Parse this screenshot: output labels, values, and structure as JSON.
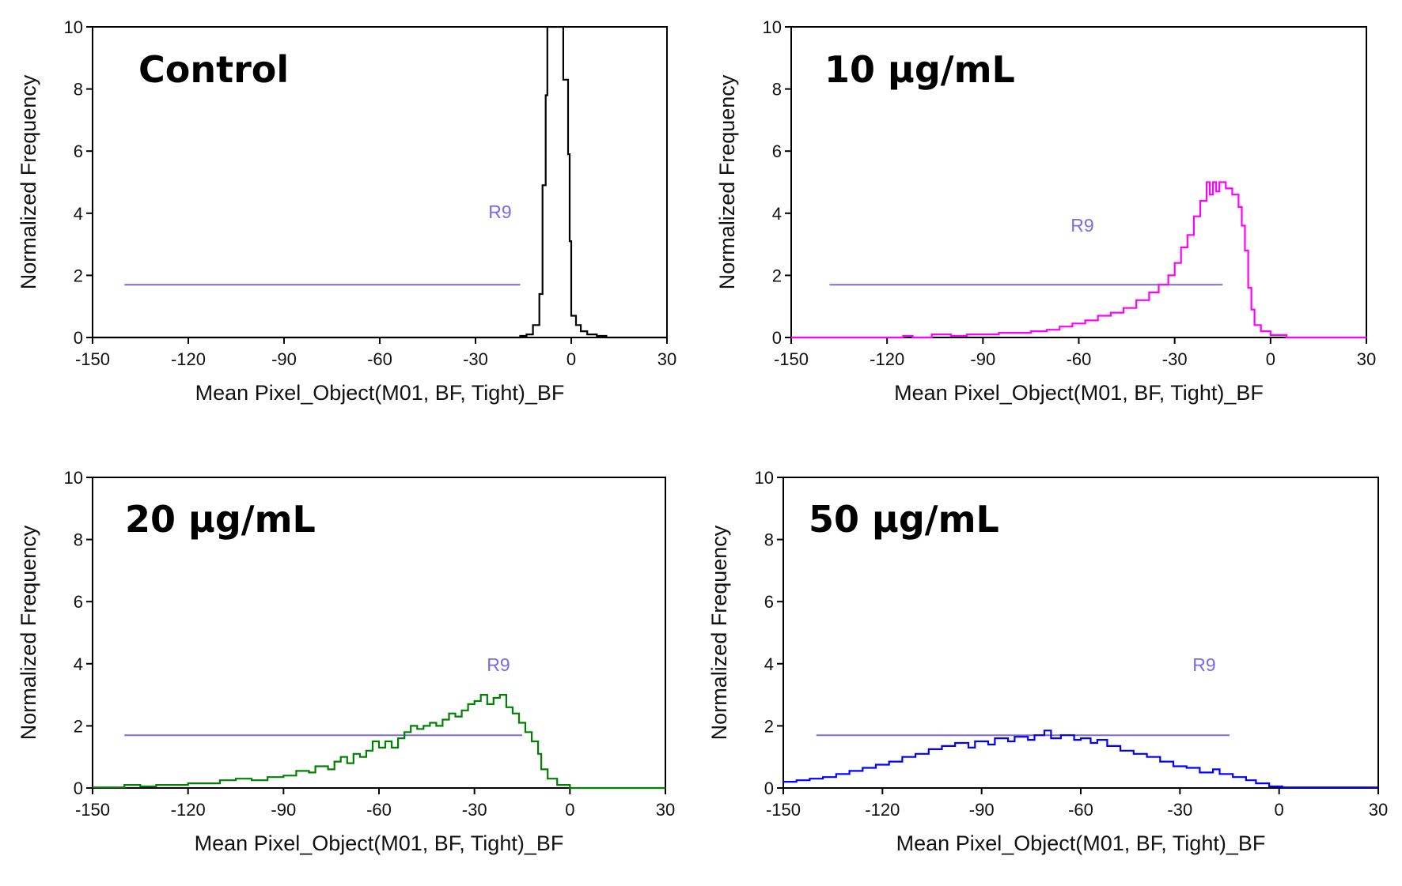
{
  "figure": {
    "region_color": "#7b68ee",
    "axis_color": "#000000"
  },
  "chart_data": [
    {
      "type": "histogram-step",
      "title": "Control",
      "xlabel": "Mean Pixel_Object(M01, BF, Tight)_BF",
      "ylabel": "Normalized Frequency",
      "xlim": [
        -150,
        30
      ],
      "ylim": [
        0,
        10
      ],
      "xticks": [
        -150,
        -120,
        -90,
        -60,
        -30,
        0,
        30
      ],
      "yticks": [
        0,
        2,
        4,
        6,
        8,
        10
      ],
      "color": "#000000",
      "region": {
        "name": "R9",
        "x_start": -140,
        "x_end": -16,
        "y": 1.7
      },
      "series": [
        [
          -150,
          0
        ],
        [
          -16,
          0
        ],
        [
          -16,
          0.05
        ],
        [
          -14,
          0.05
        ],
        [
          -14,
          0.1
        ],
        [
          -12,
          0.1
        ],
        [
          -12,
          0.4
        ],
        [
          -10,
          0.4
        ],
        [
          -10,
          1.4
        ],
        [
          -9,
          1.4
        ],
        [
          -9,
          4.9
        ],
        [
          -8,
          4.9
        ],
        [
          -8,
          7.8
        ],
        [
          -7.5,
          7.8
        ],
        [
          -7.5,
          10
        ],
        [
          -2.5,
          10
        ],
        [
          -2.5,
          8.3
        ],
        [
          -1,
          8.3
        ],
        [
          -1,
          5.9
        ],
        [
          -0.5,
          5.9
        ],
        [
          -0.5,
          3.1
        ],
        [
          0,
          3.1
        ],
        [
          0,
          0.7
        ],
        [
          1.5,
          0.7
        ],
        [
          1.5,
          0.4
        ],
        [
          3,
          0.4
        ],
        [
          3,
          0.2
        ],
        [
          5,
          0.2
        ],
        [
          5,
          0.1
        ],
        [
          8,
          0.1
        ],
        [
          8,
          0.05
        ],
        [
          11,
          0.05
        ],
        [
          11,
          0
        ],
        [
          30,
          0
        ]
      ]
    },
    {
      "type": "histogram-step",
      "title": "10 µg/mL",
      "xlabel": "Mean Pixel_Object(M01, BF, Tight)_BF",
      "ylabel": "Normalized Frequency",
      "xlim": [
        -150,
        30
      ],
      "ylim": [
        0,
        10
      ],
      "xticks": [
        -150,
        -120,
        -90,
        -60,
        -30,
        0,
        30
      ],
      "yticks": [
        0,
        2,
        4,
        6,
        8,
        10
      ],
      "color": "#ff00ff",
      "region": {
        "name": "R9",
        "x_start": -138,
        "x_end": -15,
        "y": 1.7
      },
      "series": [
        [
          -150,
          0
        ],
        [
          -115,
          0
        ],
        [
          -115,
          0.05
        ],
        [
          -112,
          0.05
        ],
        [
          -112,
          0
        ],
        [
          -106,
          0
        ],
        [
          -106,
          0.1
        ],
        [
          -100,
          0.1
        ],
        [
          -100,
          0.05
        ],
        [
          -95,
          0.05
        ],
        [
          -95,
          0.1
        ],
        [
          -85,
          0.1
        ],
        [
          -85,
          0.15
        ],
        [
          -75,
          0.15
        ],
        [
          -75,
          0.2
        ],
        [
          -70,
          0.2
        ],
        [
          -70,
          0.25
        ],
        [
          -66,
          0.25
        ],
        [
          -66,
          0.35
        ],
        [
          -62,
          0.35
        ],
        [
          -62,
          0.45
        ],
        [
          -58,
          0.45
        ],
        [
          -58,
          0.55
        ],
        [
          -54,
          0.55
        ],
        [
          -54,
          0.7
        ],
        [
          -50,
          0.7
        ],
        [
          -50,
          0.8
        ],
        [
          -46,
          0.8
        ],
        [
          -46,
          0.95
        ],
        [
          -42,
          0.95
        ],
        [
          -42,
          1.2
        ],
        [
          -38,
          1.2
        ],
        [
          -38,
          1.45
        ],
        [
          -35,
          1.45
        ],
        [
          -35,
          1.7
        ],
        [
          -32,
          1.7
        ],
        [
          -32,
          2.0
        ],
        [
          -30,
          2.0
        ],
        [
          -30,
          2.4
        ],
        [
          -28,
          2.4
        ],
        [
          -28,
          2.9
        ],
        [
          -26,
          2.9
        ],
        [
          -26,
          3.3
        ],
        [
          -24,
          3.3
        ],
        [
          -24,
          3.9
        ],
        [
          -22,
          3.9
        ],
        [
          -22,
          4.4
        ],
        [
          -20,
          4.4
        ],
        [
          -20,
          5.0
        ],
        [
          -19,
          5.0
        ],
        [
          -19,
          4.6
        ],
        [
          -18,
          4.6
        ],
        [
          -18,
          5.0
        ],
        [
          -17,
          5.0
        ],
        [
          -17,
          4.7
        ],
        [
          -16,
          4.7
        ],
        [
          -16,
          5.0
        ],
        [
          -14,
          5.0
        ],
        [
          -14,
          4.8
        ],
        [
          -12,
          4.8
        ],
        [
          -12,
          4.6
        ],
        [
          -10,
          4.6
        ],
        [
          -10,
          4.2
        ],
        [
          -9,
          4.2
        ],
        [
          -9,
          3.6
        ],
        [
          -8,
          3.6
        ],
        [
          -8,
          2.8
        ],
        [
          -7,
          2.8
        ],
        [
          -7,
          1.6
        ],
        [
          -6,
          1.6
        ],
        [
          -6,
          0.9
        ],
        [
          -5,
          0.9
        ],
        [
          -5,
          0.4
        ],
        [
          -3,
          0.4
        ],
        [
          -3,
          0.2
        ],
        [
          0,
          0.2
        ],
        [
          0,
          0.08
        ],
        [
          5,
          0.08
        ],
        [
          5,
          0
        ],
        [
          30,
          0
        ]
      ]
    },
    {
      "type": "histogram-step",
      "title": "20 µg/mL",
      "xlabel": "Mean Pixel_Object(M01, BF, Tight)_BF",
      "ylabel": "Normalized Frequency",
      "xlim": [
        -150,
        30
      ],
      "ylim": [
        0,
        10
      ],
      "xticks": [
        -150,
        -120,
        -90,
        -60,
        -30,
        0,
        30
      ],
      "yticks": [
        0,
        2,
        4,
        6,
        8,
        10
      ],
      "color": "#008000",
      "region": {
        "name": "R9",
        "x_start": -140,
        "x_end": -15,
        "y": 1.7
      },
      "series": [
        [
          -150,
          0.02
        ],
        [
          -140,
          0.02
        ],
        [
          -140,
          0.1
        ],
        [
          -135,
          0.1
        ],
        [
          -135,
          0.05
        ],
        [
          -130,
          0.05
        ],
        [
          -130,
          0.1
        ],
        [
          -120,
          0.1
        ],
        [
          -120,
          0.15
        ],
        [
          -110,
          0.15
        ],
        [
          -110,
          0.25
        ],
        [
          -105,
          0.25
        ],
        [
          -105,
          0.3
        ],
        [
          -100,
          0.3
        ],
        [
          -100,
          0.25
        ],
        [
          -95,
          0.25
        ],
        [
          -95,
          0.35
        ],
        [
          -90,
          0.35
        ],
        [
          -90,
          0.4
        ],
        [
          -86,
          0.4
        ],
        [
          -86,
          0.55
        ],
        [
          -82,
          0.55
        ],
        [
          -82,
          0.5
        ],
        [
          -80,
          0.5
        ],
        [
          -80,
          0.7
        ],
        [
          -76,
          0.7
        ],
        [
          -76,
          0.6
        ],
        [
          -74,
          0.6
        ],
        [
          -74,
          0.85
        ],
        [
          -72,
          0.85
        ],
        [
          -72,
          1.0
        ],
        [
          -70,
          1.0
        ],
        [
          -70,
          0.8
        ],
        [
          -68,
          0.8
        ],
        [
          -68,
          1.1
        ],
        [
          -66,
          1.1
        ],
        [
          -66,
          1.0
        ],
        [
          -64,
          1.0
        ],
        [
          -64,
          1.2
        ],
        [
          -62,
          1.2
        ],
        [
          -62,
          1.5
        ],
        [
          -60,
          1.5
        ],
        [
          -60,
          1.3
        ],
        [
          -58,
          1.3
        ],
        [
          -58,
          1.5
        ],
        [
          -56,
          1.5
        ],
        [
          -56,
          1.3
        ],
        [
          -54,
          1.3
        ],
        [
          -54,
          1.6
        ],
        [
          -52,
          1.6
        ],
        [
          -52,
          1.8
        ],
        [
          -50,
          1.8
        ],
        [
          -50,
          2.0
        ],
        [
          -48,
          2.0
        ],
        [
          -48,
          1.9
        ],
        [
          -46,
          1.9
        ],
        [
          -46,
          2.0
        ],
        [
          -44,
          2.0
        ],
        [
          -44,
          2.1
        ],
        [
          -42,
          2.1
        ],
        [
          -42,
          2.0
        ],
        [
          -40,
          2.0
        ],
        [
          -40,
          2.2
        ],
        [
          -38,
          2.2
        ],
        [
          -38,
          2.4
        ],
        [
          -36,
          2.4
        ],
        [
          -36,
          2.3
        ],
        [
          -34,
          2.3
        ],
        [
          -34,
          2.5
        ],
        [
          -32,
          2.5
        ],
        [
          -32,
          2.7
        ],
        [
          -30,
          2.7
        ],
        [
          -30,
          2.8
        ],
        [
          -28,
          2.8
        ],
        [
          -28,
          3.0
        ],
        [
          -26,
          3.0
        ],
        [
          -26,
          2.7
        ],
        [
          -24,
          2.7
        ],
        [
          -24,
          2.9
        ],
        [
          -22,
          2.9
        ],
        [
          -22,
          3.0
        ],
        [
          -20,
          3.0
        ],
        [
          -20,
          2.6
        ],
        [
          -18,
          2.6
        ],
        [
          -18,
          2.4
        ],
        [
          -16,
          2.4
        ],
        [
          -16,
          2.1
        ],
        [
          -14,
          2.1
        ],
        [
          -14,
          1.8
        ],
        [
          -12,
          1.8
        ],
        [
          -12,
          1.5
        ],
        [
          -10,
          1.5
        ],
        [
          -10,
          1.1
        ],
        [
          -9,
          1.1
        ],
        [
          -9,
          0.6
        ],
        [
          -7,
          0.6
        ],
        [
          -7,
          0.3
        ],
        [
          -4,
          0.3
        ],
        [
          -4,
          0.1
        ],
        [
          0,
          0.1
        ],
        [
          0,
          0
        ],
        [
          30,
          0
        ]
      ]
    },
    {
      "type": "histogram-step",
      "title": "50 µg/mL",
      "xlabel": "Mean Pixel_Object(M01, BF, Tight)_BF",
      "ylabel": "Normalized Frequency",
      "xlim": [
        -150,
        30
      ],
      "ylim": [
        0,
        10
      ],
      "xticks": [
        -150,
        -120,
        -90,
        -60,
        -30,
        0,
        30
      ],
      "yticks": [
        0,
        2,
        4,
        6,
        8,
        10
      ],
      "color": "#0000ff",
      "region": {
        "name": "R9",
        "x_start": -140,
        "x_end": -15,
        "y": 1.7
      },
      "series": [
        [
          -150,
          0.2
        ],
        [
          -146,
          0.2
        ],
        [
          -146,
          0.25
        ],
        [
          -142,
          0.25
        ],
        [
          -142,
          0.3
        ],
        [
          -138,
          0.3
        ],
        [
          -138,
          0.35
        ],
        [
          -134,
          0.35
        ],
        [
          -134,
          0.45
        ],
        [
          -130,
          0.45
        ],
        [
          -130,
          0.55
        ],
        [
          -126,
          0.55
        ],
        [
          -126,
          0.65
        ],
        [
          -122,
          0.65
        ],
        [
          -122,
          0.75
        ],
        [
          -118,
          0.75
        ],
        [
          -118,
          0.85
        ],
        [
          -114,
          0.85
        ],
        [
          -114,
          1.0
        ],
        [
          -110,
          1.0
        ],
        [
          -110,
          1.1
        ],
        [
          -106,
          1.1
        ],
        [
          -106,
          1.25
        ],
        [
          -102,
          1.25
        ],
        [
          -102,
          1.35
        ],
        [
          -98,
          1.35
        ],
        [
          -98,
          1.45
        ],
        [
          -94,
          1.45
        ],
        [
          -94,
          1.3
        ],
        [
          -92,
          1.3
        ],
        [
          -92,
          1.5
        ],
        [
          -88,
          1.5
        ],
        [
          -88,
          1.4
        ],
        [
          -86,
          1.4
        ],
        [
          -86,
          1.6
        ],
        [
          -82,
          1.6
        ],
        [
          -82,
          1.5
        ],
        [
          -80,
          1.5
        ],
        [
          -80,
          1.65
        ],
        [
          -76,
          1.65
        ],
        [
          -76,
          1.55
        ],
        [
          -74,
          1.55
        ],
        [
          -74,
          1.7
        ],
        [
          -71,
          1.7
        ],
        [
          -71,
          1.85
        ],
        [
          -69,
          1.85
        ],
        [
          -69,
          1.6
        ],
        [
          -66,
          1.6
        ],
        [
          -66,
          1.7
        ],
        [
          -62,
          1.7
        ],
        [
          -62,
          1.55
        ],
        [
          -60,
          1.55
        ],
        [
          -60,
          1.6
        ],
        [
          -57,
          1.6
        ],
        [
          -57,
          1.45
        ],
        [
          -55,
          1.45
        ],
        [
          -55,
          1.55
        ],
        [
          -52,
          1.55
        ],
        [
          -52,
          1.35
        ],
        [
          -48,
          1.35
        ],
        [
          -48,
          1.2
        ],
        [
          -44,
          1.2
        ],
        [
          -44,
          1.1
        ],
        [
          -40,
          1.1
        ],
        [
          -40,
          1.0
        ],
        [
          -36,
          1.0
        ],
        [
          -36,
          0.85
        ],
        [
          -32,
          0.85
        ],
        [
          -32,
          0.7
        ],
        [
          -28,
          0.7
        ],
        [
          -28,
          0.65
        ],
        [
          -24,
          0.65
        ],
        [
          -24,
          0.5
        ],
        [
          -20,
          0.5
        ],
        [
          -20,
          0.6
        ],
        [
          -18,
          0.6
        ],
        [
          -18,
          0.45
        ],
        [
          -14,
          0.45
        ],
        [
          -14,
          0.35
        ],
        [
          -10,
          0.35
        ],
        [
          -10,
          0.25
        ],
        [
          -7,
          0.25
        ],
        [
          -7,
          0.15
        ],
        [
          -3,
          0.15
        ],
        [
          -3,
          0.05
        ],
        [
          1,
          0.05
        ],
        [
          1,
          0.02
        ],
        [
          30,
          0.02
        ]
      ]
    }
  ]
}
